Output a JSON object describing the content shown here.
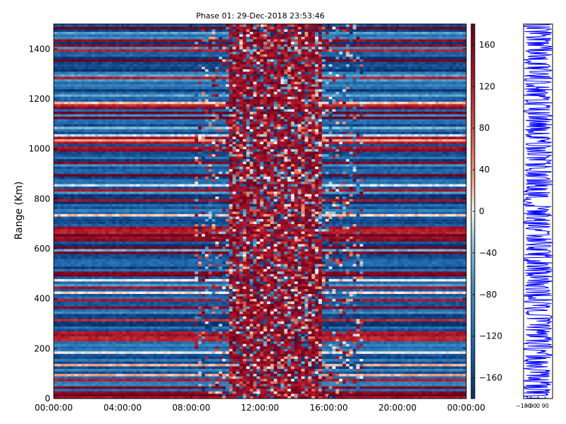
{
  "chart_data": [
    {
      "type": "heatmap",
      "title": "Phase 01: 29-Dec-2018 23:53:46",
      "xlabel": "",
      "ylabel": "Range (Km)",
      "x_ticks": [
        "00:00:00",
        "04:00:00",
        "08:00:00",
        "12:00:00",
        "16:00:00",
        "20:00:00",
        "00:00:00"
      ],
      "y_ticks": [
        0,
        200,
        400,
        600,
        800,
        1000,
        1200,
        1400
      ],
      "ylim": [
        0,
        1500
      ],
      "xlim_hours": [
        0,
        24
      ],
      "colorbar": {
        "range": [
          -180,
          180
        ],
        "ticks": [
          160,
          120,
          80,
          40,
          0,
          -40,
          -80,
          -120,
          -160
        ],
        "tick_labels": [
          "160",
          "120",
          "80",
          "40",
          "0",
          "−40",
          "−80",
          "−120",
          "−160"
        ],
        "colors": {
          "low": "#0b2f5e",
          "mid_low": "#2f6aa8",
          "light_low": "#b9d6ea",
          "mid": "#f7f7f7",
          "light_high": "#f3b193",
          "mid_high": "#c43a35",
          "high": "#67001f"
        }
      },
      "grid": false
    },
    {
      "type": "line",
      "title": "",
      "xlabel": "",
      "ylabel": "",
      "x_tick_labels": [
        "−180",
        "−90",
        "0",
        "90"
      ],
      "x_tick_values": [
        -180,
        -90,
        0,
        90
      ],
      "xlim": [
        -180,
        180
      ],
      "ylim": [
        0,
        1500
      ],
      "series_color": "#0000ff"
    }
  ]
}
